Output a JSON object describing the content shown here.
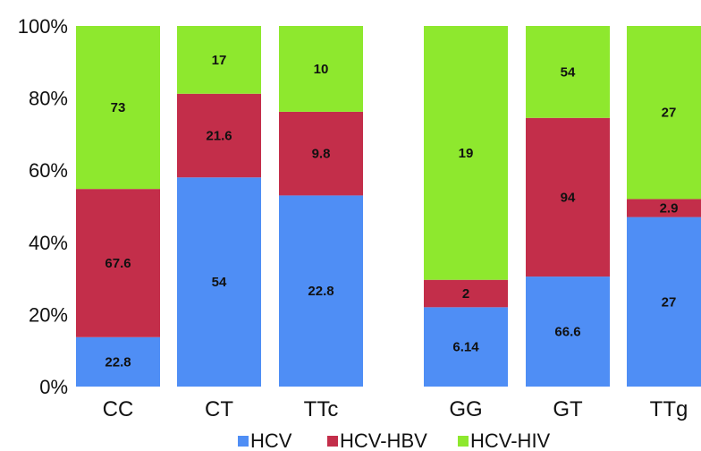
{
  "chart_data": {
    "type": "bar",
    "stacked": true,
    "normalized": true,
    "categories": [
      "CC",
      "CT",
      "TTc",
      "GG",
      "GT",
      "TTg"
    ],
    "ylim": [
      0,
      100
    ],
    "ytick_labels": [
      "0%",
      "20%",
      "40%",
      "60%",
      "80%",
      "100%"
    ],
    "ytick_values": [
      0,
      20,
      40,
      60,
      80,
      100
    ],
    "grid": false,
    "legend_position": "bottom",
    "series": [
      {
        "name": "HCV",
        "color": "#4f8ef5",
        "heights_percent": [
          13.7,
          58.0,
          53.0,
          22.0,
          30.5,
          47.0
        ],
        "labels": [
          "22.8",
          "54",
          "22.8",
          "6.14",
          "66.6",
          "27"
        ]
      },
      {
        "name": "HCV-HBV",
        "color": "#c32e4a",
        "heights_percent": [
          41.1,
          23.2,
          23.2,
          7.6,
          44.0,
          5.0
        ],
        "labels": [
          "67.6",
          "21.6",
          "9.8",
          "2",
          "94",
          "2.9"
        ]
      },
      {
        "name": "HCV-HIV",
        "color": "#8ee82e",
        "heights_percent": [
          45.2,
          18.8,
          23.8,
          70.4,
          25.5,
          48.0
        ],
        "labels": [
          "73",
          "17",
          "10",
          "19",
          "54",
          "27"
        ]
      }
    ]
  }
}
